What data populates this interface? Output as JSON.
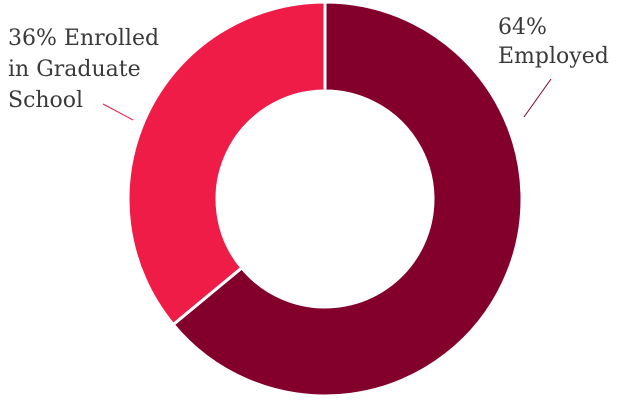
{
  "chart_data": {
    "type": "pie",
    "variant": "donut",
    "title": "",
    "slices": [
      {
        "name": "Employed",
        "value": 64,
        "color": "#83002C",
        "label_lines": [
          "64%",
          "Employed"
        ]
      },
      {
        "name": "Enrolled in Graduate School",
        "value": 36,
        "color": "#EE1C47",
        "label_lines": [
          "36% Enrolled",
          "in Graduate",
          "School"
        ]
      }
    ],
    "start": "top",
    "direction": "clockwise",
    "separator_color": "#ffffff"
  }
}
